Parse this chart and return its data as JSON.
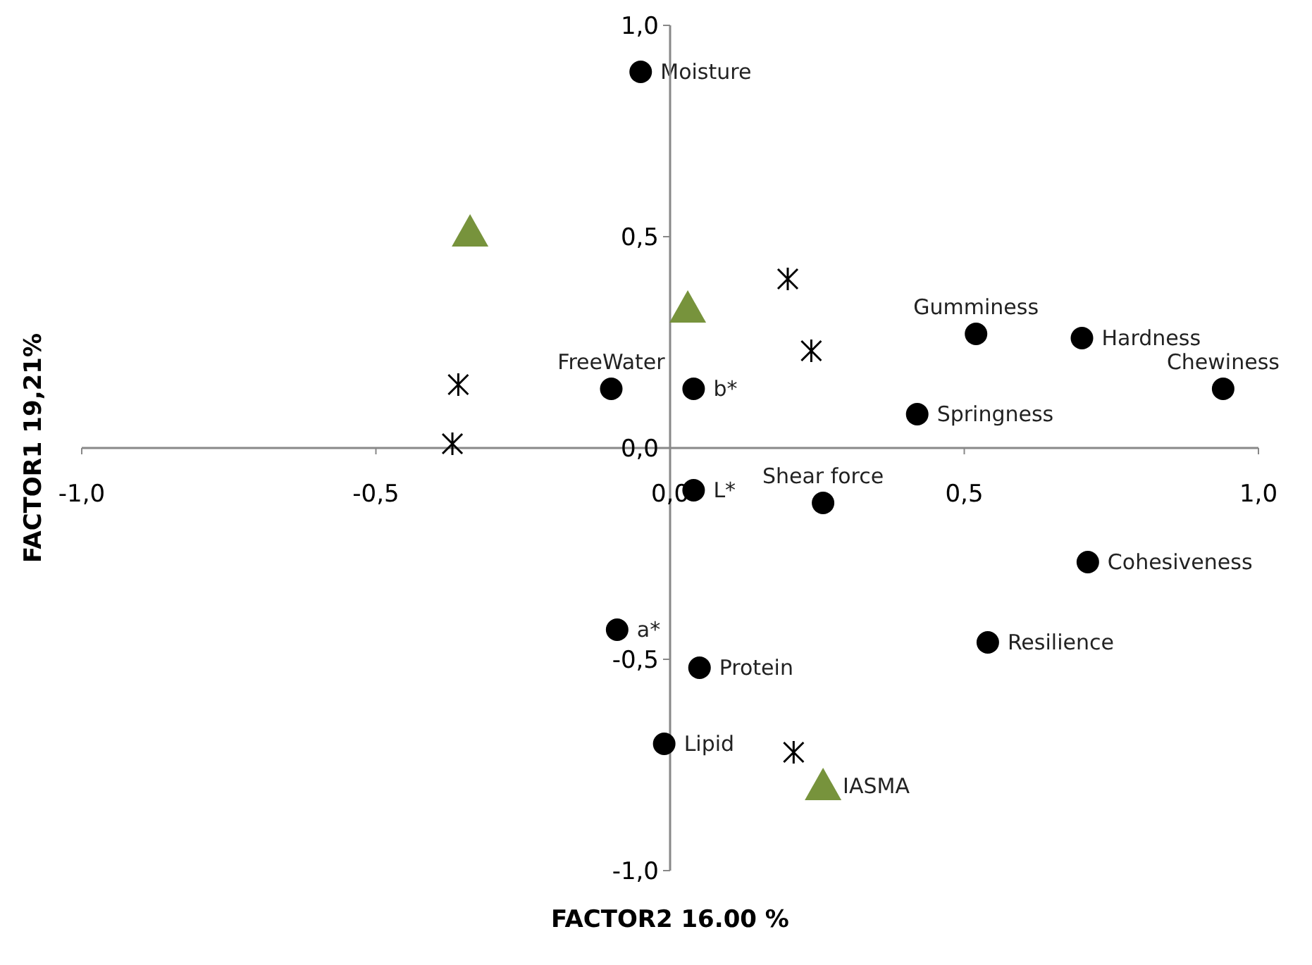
{
  "chart_data": {
    "type": "scatter",
    "xlabel": "FACTOR2  16.00 %",
    "ylabel": "FACTOR1  19,21%",
    "xlim": [
      -1,
      1
    ],
    "ylim": [
      -1,
      1
    ],
    "xticks": [
      {
        "value": -1,
        "label": "-1,0"
      },
      {
        "value": -0.5,
        "label": "-0,5"
      },
      {
        "value": 0,
        "label": "0,0"
      },
      {
        "value": 0.5,
        "label": "0,5"
      },
      {
        "value": 1,
        "label": "1,0"
      }
    ],
    "yticks": [
      {
        "value": -1,
        "label": "-1,0"
      },
      {
        "value": -0.5,
        "label": "-0,5"
      },
      {
        "value": 0,
        "label": "0,0"
      },
      {
        "value": 0.5,
        "label": "0,5"
      },
      {
        "value": 1,
        "label": "1,0"
      }
    ],
    "grid": false,
    "legend": false,
    "series": [
      {
        "color": "#000000",
        "marker": "circle",
        "x": [
          -0.05,
          -0.1,
          0.04,
          0.52,
          0.7,
          0.94,
          0.42,
          0.04,
          0.26,
          0.71,
          0.54,
          -0.09,
          0.05,
          -0.01
        ],
        "values": [
          0.89,
          0.14,
          0.14,
          0.27,
          0.26,
          0.14,
          0.08,
          -0.1,
          -0.13,
          -0.27,
          -0.46,
          -0.43,
          -0.52,
          -0.7
        ]
      },
      {
        "color": "#000000",
        "marker": "cross",
        "x": [
          -0.36,
          -0.37,
          0.2,
          0.24,
          0.21
        ],
        "values": [
          0.15,
          0.01,
          0.4,
          0.23,
          -0.72
        ]
      },
      {
        "color": "#77933c",
        "marker": "triangle",
        "x": [
          -0.34,
          0.03,
          0.26
        ],
        "values": [
          0.51,
          0.33,
          -0.8
        ]
      }
    ],
    "annotations": [
      {
        "text": "Moisture",
        "x": -0.05,
        "y": 0.89
      },
      {
        "text": "FreeWater",
        "x": -0.1,
        "y": 0.14
      },
      {
        "text": "b*",
        "x": 0.04,
        "y": 0.14
      },
      {
        "text": "Gumminess",
        "x": 0.52,
        "y": 0.27
      },
      {
        "text": "Hardness",
        "x": 0.7,
        "y": 0.26
      },
      {
        "text": "Chewiness",
        "x": 0.94,
        "y": 0.14
      },
      {
        "text": "Springness",
        "x": 0.42,
        "y": 0.08
      },
      {
        "text": "L*",
        "x": 0.04,
        "y": -0.1
      },
      {
        "text": "Shear force",
        "x": 0.26,
        "y": -0.13
      },
      {
        "text": "Cohesiveness",
        "x": 0.71,
        "y": -0.27
      },
      {
        "text": "Resilience",
        "x": 0.54,
        "y": -0.46
      },
      {
        "text": "a*",
        "x": -0.09,
        "y": -0.43
      },
      {
        "text": "Protein",
        "x": 0.05,
        "y": -0.52
      },
      {
        "text": "Lipid",
        "x": -0.01,
        "y": -0.7
      },
      {
        "text": "IASMA",
        "x": 0.26,
        "y": -0.8
      }
    ]
  }
}
